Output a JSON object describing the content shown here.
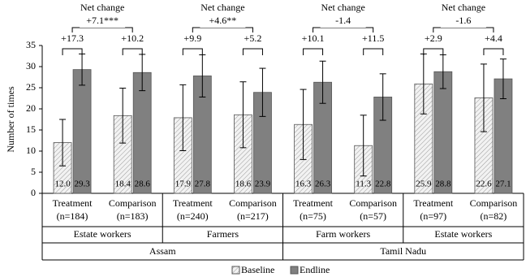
{
  "chart_data": {
    "type": "bar",
    "y_label": "Number of times",
    "ylim": [
      0,
      35
    ],
    "yticks": [
      0,
      5,
      10,
      15,
      20,
      25,
      30,
      35
    ],
    "categories": [
      [
        "Treatment",
        "(n=184)"
      ],
      [
        "Comparison",
        "(n=183)"
      ],
      [
        "Treatment",
        "(n=240)"
      ],
      [
        "Comparison",
        "(n=217)"
      ],
      [
        "Treatment",
        "(n=75)"
      ],
      [
        "Comparison",
        "(n=57)"
      ],
      [
        "Treatment",
        "(n=97)"
      ],
      [
        "Comparison",
        "(n=82)"
      ]
    ],
    "groups": [
      "Estate workers",
      "Farmers",
      "Farm workers",
      "Estate workers"
    ],
    "regions": [
      "Assam",
      "Tamil Nadu"
    ],
    "series": [
      {
        "name": "Baseline",
        "color": "#d9d9d9",
        "values": [
          12.0,
          18.4,
          17.9,
          18.6,
          16.3,
          11.3,
          25.9,
          22.6
        ],
        "value_labels": [
          "12.0",
          "18.4",
          "17.9",
          "18.6",
          "16.3",
          "11.3",
          "25.9",
          "22.6"
        ],
        "errors": [
          5.5,
          6.5,
          7.8,
          7.8,
          8.3,
          7.2,
          7.1,
          8.0
        ]
      },
      {
        "name": "Endline",
        "color": "#808080",
        "values": [
          29.3,
          28.6,
          27.8,
          23.9,
          26.3,
          22.8,
          28.8,
          27.1
        ],
        "value_labels": [
          "29.3",
          "28.6",
          "27.8",
          "23.9",
          "26.3",
          "22.8",
          "28.8",
          "27.1"
        ],
        "errors": [
          3.7,
          4.3,
          5.0,
          5.7,
          5.0,
          5.5,
          4.0,
          4.7
        ]
      }
    ],
    "changes": [
      17.3,
      10.2,
      9.9,
      5.2,
      10.1,
      11.5,
      2.9,
      4.4
    ],
    "change_labels": [
      "+17.3",
      "+10.2",
      "+9.9",
      "+5.2",
      "+10.1",
      "+11.5",
      "+2.9",
      "+4.4"
    ],
    "net_change_title": "Net change",
    "net_changes": [
      7.1,
      4.6,
      -1.4,
      -1.6
    ],
    "net_change_labels": [
      "+7.1***",
      "+4.6**",
      "-1.4",
      "-1.6"
    ]
  }
}
